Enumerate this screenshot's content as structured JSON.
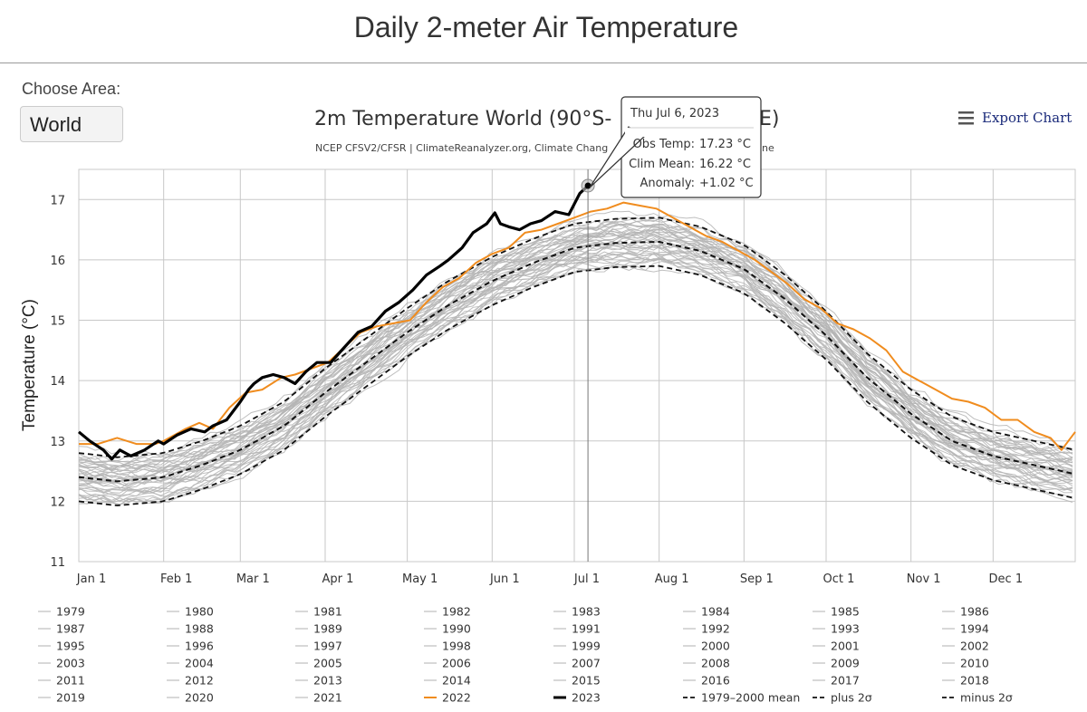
{
  "page": {
    "title": "Daily 2-meter Air Temperature",
    "area_label": "Choose Area:",
    "area_value": "World",
    "export_label": "Export Chart"
  },
  "colors": {
    "grid": "#c8c8c8",
    "gray_years": "#b4b4b4",
    "year_2022": "#f08c1e",
    "year_2023": "#000000",
    "mean": "#111111",
    "clim_mean_value": "#2e7d32",
    "anomaly_value": "#a01c1c"
  },
  "tooltip": {
    "date": "Thu Jul 6, 2023",
    "obs_label": "Obs Temp:",
    "obs_value": "17.23 °C",
    "clim_label": "Clim Mean:",
    "clim_value": "16.22 °C",
    "anom_label": "Anomaly:",
    "anom_value": "+1.02 °C"
  },
  "chart_data": {
    "type": "line",
    "title": "2m Temperature World (90°S-",
    "title_tail": "E)",
    "subtitle": "NCEP CFSV2/CFSR | ClimateReanalyzer.org, Climate Chang",
    "subtitle_tail": "ine",
    "ylabel": "Temperature (°C)",
    "xlabel": "",
    "ylim": [
      11,
      17.5
    ],
    "yticks": [
      "11",
      "12",
      "13",
      "14",
      "15",
      "16",
      "17"
    ],
    "x_domain_days": [
      1,
      365
    ],
    "month_ticks": [
      {
        "label": "Jan 1",
        "day": 1
      },
      {
        "label": "Feb 1",
        "day": 32
      },
      {
        "label": "Mar 1",
        "day": 60
      },
      {
        "label": "Apr 1",
        "day": 91
      },
      {
        "label": "May 1",
        "day": 121
      },
      {
        "label": "Jun 1",
        "day": 152
      },
      {
        "label": "Jul 1",
        "day": 182
      },
      {
        "label": "Aug 1",
        "day": 213
      },
      {
        "label": "Sep 1",
        "day": 244
      },
      {
        "label": "Oct 1",
        "day": 274
      },
      {
        "label": "Nov 1",
        "day": 305
      },
      {
        "label": "Dec 1",
        "day": 335
      }
    ],
    "grid": true,
    "legend_position": "bottom",
    "mean_1979_2000": {
      "name": "1979–2000 mean",
      "days": [
        1,
        15,
        32,
        46,
        60,
        76,
        91,
        106,
        121,
        136,
        152,
        167,
        182,
        197,
        213,
        228,
        244,
        259,
        274,
        289,
        305,
        320,
        335,
        350,
        365
      ],
      "values": [
        12.4,
        12.33,
        12.4,
        12.6,
        12.85,
        13.25,
        13.8,
        14.3,
        14.8,
        15.25,
        15.65,
        15.95,
        16.2,
        16.28,
        16.3,
        16.15,
        15.85,
        15.35,
        14.75,
        14.05,
        13.45,
        13.0,
        12.75,
        12.6,
        12.45
      ]
    },
    "sigma_offset_c": 0.4,
    "series": [
      {
        "name": "2023",
        "days": [
          1,
          5,
          10,
          13,
          16,
          20,
          25,
          30,
          32,
          37,
          42,
          47,
          50,
          55,
          60,
          63,
          65,
          68,
          72,
          76,
          80,
          84,
          88,
          93,
          98,
          103,
          108,
          113,
          118,
          123,
          128,
          133,
          136,
          141,
          145,
          150,
          153,
          155,
          158,
          162,
          166,
          170,
          175,
          180,
          184,
          187
        ],
        "values": [
          13.15,
          13.0,
          12.85,
          12.7,
          12.85,
          12.75,
          12.85,
          13.0,
          12.95,
          13.1,
          13.2,
          13.15,
          13.25,
          13.35,
          13.65,
          13.85,
          13.95,
          14.05,
          14.1,
          14.05,
          13.95,
          14.15,
          14.3,
          14.3,
          14.55,
          14.8,
          14.9,
          15.15,
          15.3,
          15.5,
          15.75,
          15.9,
          16.0,
          16.2,
          16.45,
          16.6,
          16.78,
          16.6,
          16.55,
          16.5,
          16.6,
          16.65,
          16.8,
          16.75,
          17.1,
          17.23
        ]
      },
      {
        "name": "2022",
        "days": [
          1,
          8,
          15,
          22,
          29,
          32,
          36,
          40,
          45,
          50,
          56,
          62,
          68,
          75,
          80,
          86,
          92,
          98,
          104,
          110,
          116,
          122,
          128,
          134,
          140,
          146,
          152,
          158,
          164,
          170,
          176,
          182,
          188,
          194,
          200,
          206,
          212,
          218,
          224,
          230,
          236,
          242,
          248,
          254,
          260,
          266,
          272,
          278,
          284,
          290,
          296,
          302,
          308,
          314,
          320,
          326,
          332,
          338,
          344,
          350,
          356,
          360,
          365
        ],
        "values": [
          12.95,
          12.95,
          13.05,
          12.95,
          12.95,
          13.0,
          13.1,
          13.2,
          13.3,
          13.2,
          13.55,
          13.8,
          13.85,
          14.05,
          14.1,
          14.2,
          14.3,
          14.55,
          14.8,
          14.9,
          14.95,
          15.0,
          15.3,
          15.55,
          15.7,
          15.95,
          16.1,
          16.2,
          16.45,
          16.5,
          16.6,
          16.7,
          16.8,
          16.85,
          16.95,
          16.9,
          16.85,
          16.7,
          16.55,
          16.4,
          16.3,
          16.15,
          16.0,
          15.8,
          15.6,
          15.35,
          15.2,
          14.95,
          14.85,
          14.7,
          14.5,
          14.15,
          14.0,
          13.85,
          13.7,
          13.65,
          13.55,
          13.35,
          13.35,
          13.15,
          13.05,
          12.85,
          13.15
        ]
      }
    ],
    "tooltip_day": 187,
    "legend": [
      "1979",
      "1980",
      "1981",
      "1982",
      "1983",
      "1984",
      "1985",
      "1986",
      "1987",
      "1988",
      "1989",
      "1990",
      "1991",
      "1992",
      "1993",
      "1994",
      "1995",
      "1996",
      "1997",
      "1998",
      "1999",
      "2000",
      "2001",
      "2002",
      "2003",
      "2004",
      "2005",
      "2006",
      "2007",
      "2008",
      "2009",
      "2010",
      "2011",
      "2012",
      "2013",
      "2014",
      "2015",
      "2016",
      "2017",
      "2018",
      "2019",
      "2020",
      "2021",
      "2022",
      "2023",
      "1979–2000 mean",
      "plus 2σ",
      "minus 2σ"
    ]
  }
}
